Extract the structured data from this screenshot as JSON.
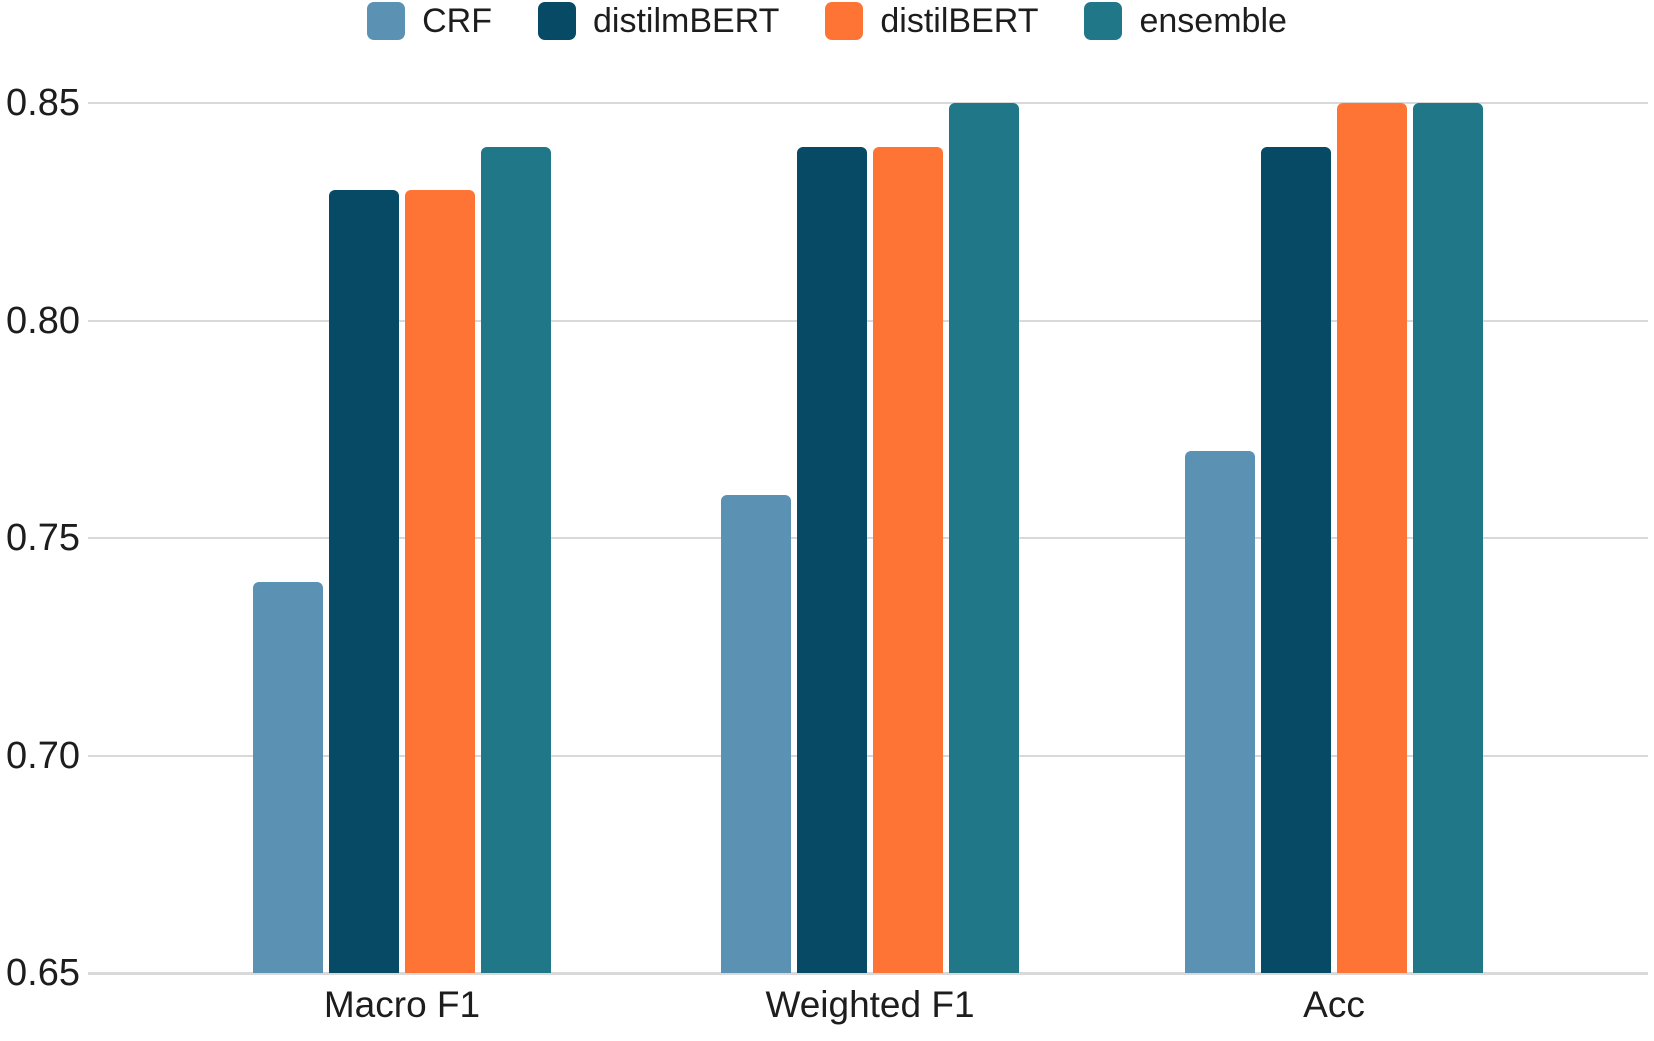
{
  "colors": {
    "background": "#ffffff",
    "gridline": "#d9d9d9",
    "text": "#1d1d1d"
  },
  "chart_data": {
    "type": "bar",
    "title": "",
    "xlabel": "",
    "ylabel": "",
    "categories": [
      "Macro F1",
      "Weighted F1",
      "Acc"
    ],
    "series": [
      {
        "name": "CRF",
        "color": "#5b92b4",
        "values": [
          0.74,
          0.76,
          0.77
        ]
      },
      {
        "name": "distilmBERT",
        "color": "#074a66",
        "values": [
          0.83,
          0.84,
          0.84
        ]
      },
      {
        "name": "distilBERT",
        "color": "#fd7434",
        "values": [
          0.83,
          0.84,
          0.85
        ]
      },
      {
        "name": "ensemble",
        "color": "#1f7788",
        "values": [
          0.84,
          0.85,
          0.85
        ]
      }
    ],
    "ylim": [
      0.65,
      0.85
    ],
    "ytick_step": 0.05,
    "yticks": [
      "0.85",
      "0.80",
      "0.75",
      "0.70",
      "0.65"
    ],
    "grid": true,
    "legend_position": "top"
  }
}
